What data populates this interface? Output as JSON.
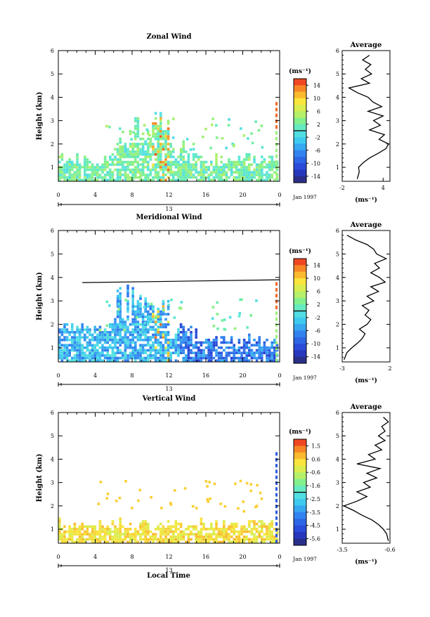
{
  "xaxis_label": "Local Time",
  "date_label": "Jan 1997",
  "date_day": "13",
  "time_ticks": [
    "0",
    "4",
    "8",
    "12",
    "16",
    "20",
    "0"
  ],
  "height_label": "Height (km)",
  "unit_label": "(ms⁻¹)",
  "average_title": "Average",
  "chart_data": [
    {
      "type": "heatmap",
      "title": "Zonal Wind",
      "xlabel": "Local Time",
      "ylabel": "Height (km)",
      "x_range_hours": [
        0,
        24
      ],
      "y_range_km": [
        0.4,
        6
      ],
      "y_ticks": [
        "1",
        "2",
        "3",
        "4",
        "5",
        "6"
      ],
      "colorbar": {
        "label": "(ms⁻¹)",
        "range": [
          -16,
          16
        ],
        "ticks": [
          "14",
          "10",
          "6",
          "2",
          "-2",
          "-6",
          "-10",
          "-14"
        ]
      },
      "average_profile": {
        "title": "Average",
        "xlabel": "(ms⁻¹)",
        "x_ticks": [
          "-2",
          "4"
        ],
        "x_range": [
          -2,
          5
        ],
        "y_ticks": [
          "1",
          "2",
          "3",
          "4",
          "5",
          "6"
        ],
        "height_km": [
          0.5,
          0.8,
          1.0,
          1.2,
          1.4,
          1.6,
          1.8,
          2.0,
          2.2,
          2.4,
          2.6,
          2.8,
          3.0,
          3.2,
          3.4,
          3.6,
          3.8,
          4.0,
          4.2,
          4.4,
          4.6,
          4.8,
          5.0,
          5.2,
          5.4,
          5.6,
          5.8
        ],
        "speed_ms": [
          0.2,
          0.5,
          0.4,
          1.1,
          2.0,
          3.3,
          4.4,
          4.8,
          3.4,
          4.2,
          2.0,
          3.6,
          2.6,
          4.0,
          1.8,
          3.8,
          2.5,
          1.8,
          0.2,
          -1.0,
          2.0,
          0.8,
          2.3,
          1.4,
          2.2,
          1.0,
          2.0
        ]
      }
    },
    {
      "type": "heatmap",
      "title": "Meridional Wind",
      "xlabel": "Local Time",
      "ylabel": "Height (km)",
      "x_range_hours": [
        0,
        24
      ],
      "y_range_km": [
        0.4,
        6
      ],
      "y_ticks": [
        "1",
        "2",
        "3",
        "4",
        "5",
        "6"
      ],
      "colorbar": {
        "label": "(ms⁻¹)",
        "range": [
          -16,
          16
        ],
        "ticks": [
          "14",
          "10",
          "6",
          "2",
          "-2",
          "-6",
          "-10",
          "-14"
        ]
      },
      "average_profile": {
        "title": "Average",
        "xlabel": "(ms⁻¹)",
        "x_ticks": [
          "-3",
          "2"
        ],
        "x_range": [
          -3,
          2
        ],
        "y_ticks": [
          "1",
          "2",
          "3",
          "4",
          "5",
          "6"
        ],
        "height_km": [
          0.5,
          0.8,
          1.0,
          1.2,
          1.4,
          1.6,
          1.8,
          2.0,
          2.2,
          2.4,
          2.6,
          2.8,
          3.0,
          3.2,
          3.4,
          3.6,
          3.8,
          4.0,
          4.2,
          4.4,
          4.6,
          4.8,
          5.0,
          5.2,
          5.4,
          5.6,
          5.8
        ],
        "speed_ms": [
          -2.8,
          -2.5,
          -2.0,
          -1.4,
          -0.9,
          -0.6,
          -1.2,
          -0.4,
          0.0,
          -0.6,
          -0.2,
          -0.9,
          0.3,
          -0.4,
          0.8,
          0.0,
          1.5,
          0.9,
          0.0,
          0.9,
          0.4,
          1.6,
          0.6,
          0.3,
          -0.4,
          -1.6,
          -2.5
        ]
      }
    },
    {
      "type": "heatmap",
      "title": "Vertical Wind",
      "xlabel": "Local Time",
      "ylabel": "Height (km)",
      "x_range_hours": [
        0,
        24
      ],
      "y_range_km": [
        0.4,
        6
      ],
      "y_ticks": [
        "1",
        "2",
        "3",
        "4",
        "5",
        "6"
      ],
      "colorbar": {
        "label": "(ms⁻¹)",
        "range": [
          -6,
          2
        ],
        "ticks": [
          "1.5",
          "0.6",
          "-0.6",
          "-1.6",
          "-2.5",
          "-3.5",
          "-4.5",
          "-5.6"
        ]
      },
      "average_profile": {
        "title": "Average",
        "xlabel": "(ms⁻¹)",
        "x_ticks": [
          "-3.5",
          "-0.6"
        ],
        "x_range": [
          -3.5,
          -0.6
        ],
        "y_ticks": [
          "1",
          "2",
          "3",
          "4",
          "5",
          "6"
        ],
        "height_km": [
          0.5,
          0.8,
          1.0,
          1.2,
          1.4,
          1.6,
          1.8,
          2.0,
          2.2,
          2.4,
          2.6,
          2.8,
          3.0,
          3.2,
          3.4,
          3.6,
          3.8,
          4.0,
          4.2,
          4.4,
          4.6,
          4.8,
          5.0,
          5.2,
          5.4,
          5.6,
          5.8
        ],
        "speed_ms": [
          -0.7,
          -0.8,
          -1.0,
          -1.3,
          -1.7,
          -2.3,
          -2.8,
          -3.4,
          -2.6,
          -2.0,
          -2.6,
          -1.8,
          -2.2,
          -1.4,
          -2.0,
          -1.2,
          -2.6,
          -1.5,
          -1.9,
          -1.1,
          -1.5,
          -0.9,
          -1.3,
          -0.9,
          -1.1,
          -0.7,
          -1.0
        ]
      }
    }
  ]
}
